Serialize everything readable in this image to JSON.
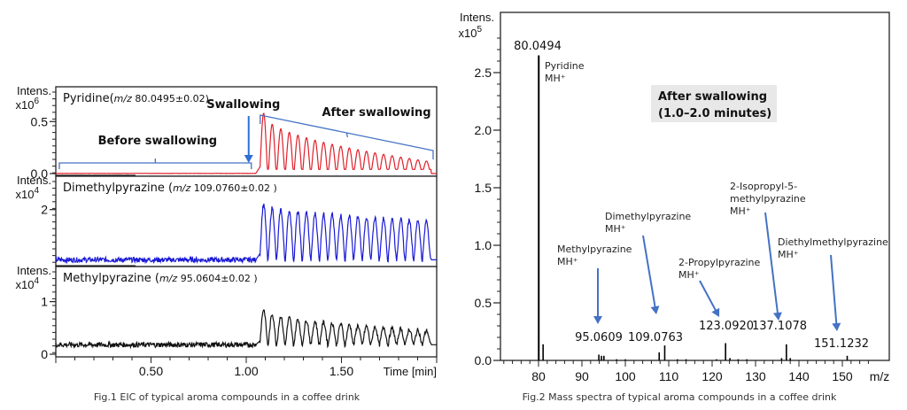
{
  "chart_data": [
    {
      "type": "line",
      "title": "Fig.1 EIC of typical aroma compounds in a coffee drink",
      "xlabel": "Time [min]",
      "xlim": [
        0.0,
        2.0
      ],
      "x_ticks": [
        "0.50",
        "1.00",
        "1.50"
      ],
      "x_tick_values": [
        0.5,
        1.0,
        1.5
      ],
      "annotations": {
        "before": "Before swallowing",
        "swallowing": "Swallowing",
        "after": "After swallowing",
        "swallowing_time": 1.05
      },
      "panels": [
        {
          "name": "Pyridine",
          "mz_label": "m/z",
          "mz_value": " 80.0495±0.02)",
          "prefix": "Pyridine(",
          "ylabel": "Intens.",
          "yscale": "x10",
          "yexp": "6",
          "ylim": [
            0,
            0.8
          ],
          "y_ticks": [
            "0.0",
            "0.5"
          ],
          "y_tick_values": [
            0.0,
            0.5
          ],
          "color": "#e0202a",
          "baseline": 0.0,
          "first_peak": 0.58,
          "last_peak": 0.12,
          "peaks": 20
        },
        {
          "name": "Dimethylpyrazine",
          "prefix": "Dimethylpyrazine (",
          "mz_label": "m/z",
          "mz_value": " 109.0760±0.02 )",
          "ylabel": "Intens.",
          "yscale": "x10",
          "yexp": "4",
          "ylim": [
            0,
            3.1
          ],
          "y_ticks": [
            "2"
          ],
          "y_tick_values": [
            2
          ],
          "color": "#1a1ad6",
          "baseline": 0.15,
          "first_peak": 2.2,
          "last_peak": 1.6,
          "peaks": 20
        },
        {
          "name": "Methylpyrazine",
          "prefix": "Methylpyrazine (",
          "mz_label": "m/z",
          "mz_value": " 95.0604±0.02 )",
          "ylabel": "Intens.",
          "yscale": "x10",
          "yexp": "4",
          "ylim": [
            0,
            1.6
          ],
          "y_ticks": [
            "1",
            "0"
          ],
          "y_tick_values": [
            1,
            0
          ],
          "color": "#111111",
          "baseline": 0.18,
          "first_peak": 0.85,
          "last_peak": 0.45,
          "peaks": 20
        }
      ]
    },
    {
      "type": "bar",
      "title": "Fig.2 Mass spectra of typical aroma compounds in a coffee drink",
      "xlabel": "m/z",
      "ylabel": "Intens.",
      "yscale": "x10",
      "yexp": "5",
      "xlim": [
        72,
        156
      ],
      "ylim": [
        0,
        2.85
      ],
      "x_ticks": [
        "80",
        "90",
        "100",
        "110",
        "120",
        "130",
        "140",
        "150"
      ],
      "x_tick_values": [
        80,
        90,
        100,
        110,
        120,
        130,
        140,
        150
      ],
      "y_ticks": [
        "0.0",
        "0.5",
        "1.0",
        "1.5",
        "2.0",
        "2.5"
      ],
      "y_tick_values": [
        0.0,
        0.5,
        1.0,
        1.5,
        2.0,
        2.5
      ],
      "inset_label": [
        "After swallowing",
        "(1.0–2.0 minutes)"
      ],
      "peaks": [
        {
          "mz": 80.0494,
          "intensity": 2.65
        },
        {
          "mz": 81.05,
          "intensity": 0.14
        },
        {
          "mz": 93.9,
          "intensity": 0.05
        },
        {
          "mz": 94.5,
          "intensity": 0.04
        },
        {
          "mz": 95.0609,
          "intensity": 0.04
        },
        {
          "mz": 98.0,
          "intensity": 0.01
        },
        {
          "mz": 100.0,
          "intensity": 0.01
        },
        {
          "mz": 107.8,
          "intensity": 0.07
        },
        {
          "mz": 109.0763,
          "intensity": 0.13
        },
        {
          "mz": 112.0,
          "intensity": 0.01
        },
        {
          "mz": 114.0,
          "intensity": 0.01
        },
        {
          "mz": 121.0,
          "intensity": 0.01
        },
        {
          "mz": 123.092,
          "intensity": 0.15
        },
        {
          "mz": 124.1,
          "intensity": 0.02
        },
        {
          "mz": 126.0,
          "intensity": 0.01
        },
        {
          "mz": 128.0,
          "intensity": 0.01
        },
        {
          "mz": 136.0,
          "intensity": 0.02
        },
        {
          "mz": 137.1078,
          "intensity": 0.14
        },
        {
          "mz": 138.0,
          "intensity": 0.02
        },
        {
          "mz": 151.1232,
          "intensity": 0.04
        }
      ],
      "peak_labels": [
        {
          "mz": 80.0494,
          "text": "80.0494"
        },
        {
          "mz": 95.0609,
          "text": "95.0609"
        },
        {
          "mz": 109.0763,
          "text": "109.0763"
        },
        {
          "mz": 123.092,
          "text": "123.0920"
        },
        {
          "mz": 137.1078,
          "text": "137.1078"
        },
        {
          "mz": 151.1232,
          "text": "151.1232"
        }
      ],
      "compound_labels": [
        {
          "lines": [
            "Pyridine",
            "MH⁺"
          ]
        },
        {
          "lines": [
            "Methylpyrazine",
            "MH⁺"
          ]
        },
        {
          "lines": [
            "Dimethylpyrazine",
            "MH⁺"
          ]
        },
        {
          "lines": [
            "2-Propylpyrazine",
            "MH⁺"
          ]
        },
        {
          "lines": [
            "2-Isopropyl-5-",
            "methylpyrazine",
            "MH⁺"
          ]
        },
        {
          "lines": [
            "Diethylmethylpyrazine",
            "MH⁺"
          ]
        }
      ],
      "arrow_color": "#4472c4"
    }
  ]
}
